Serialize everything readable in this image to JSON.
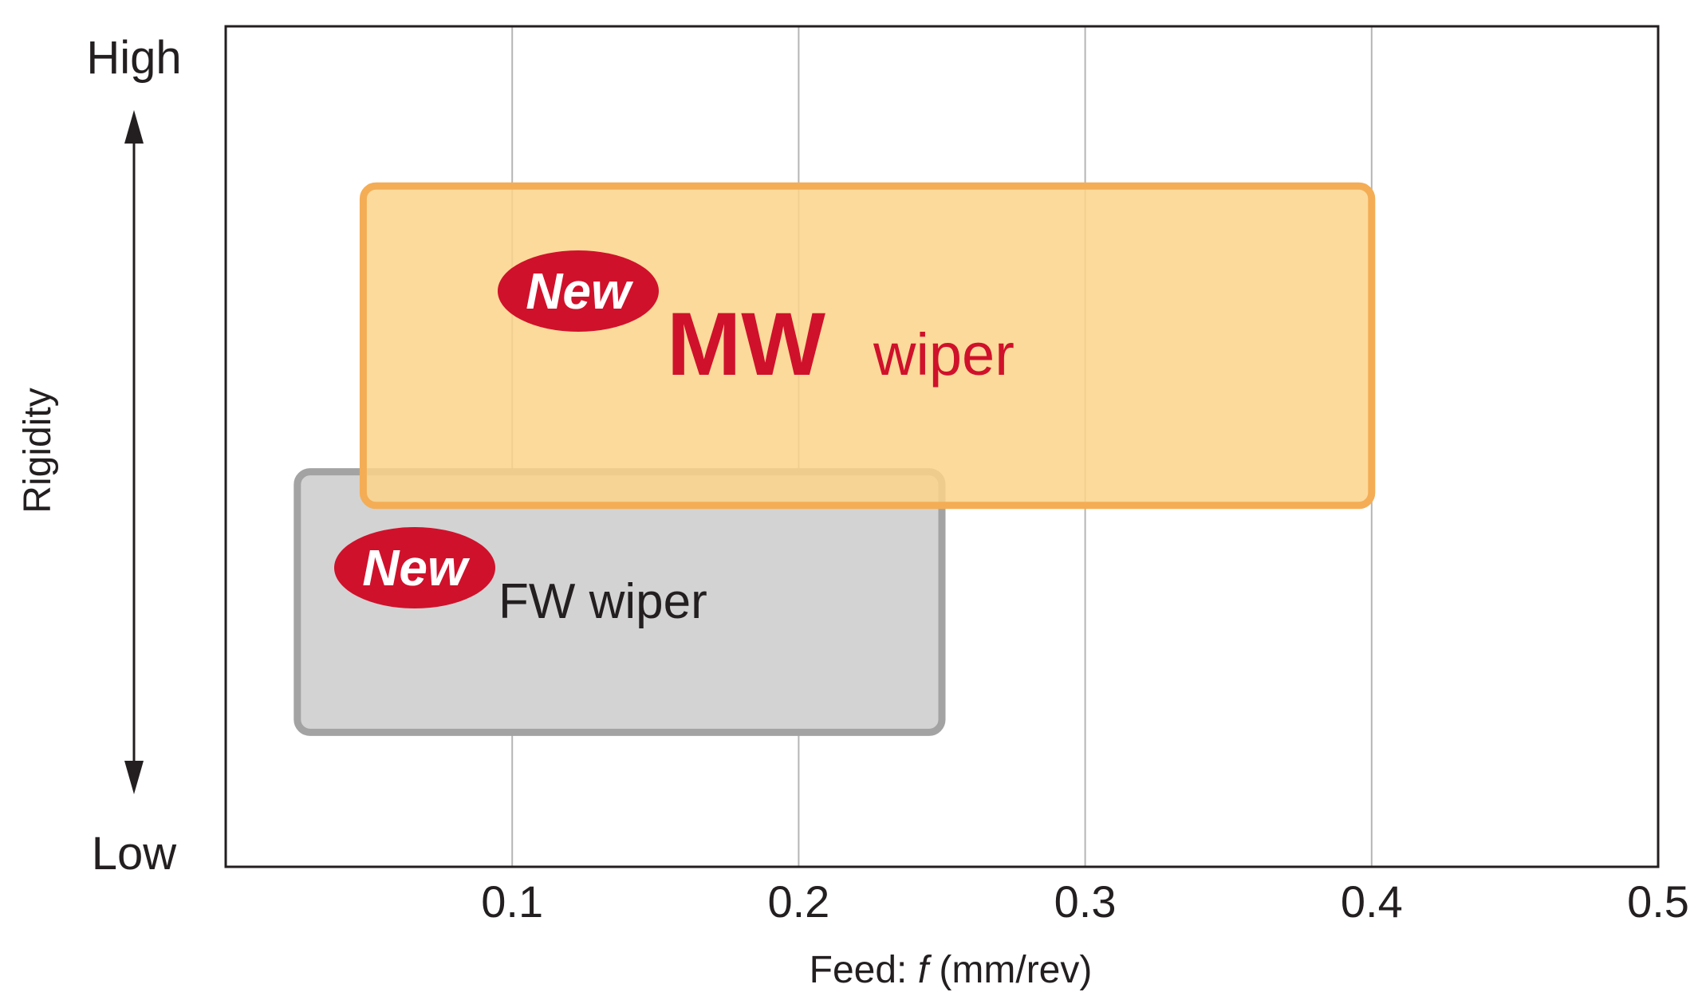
{
  "chart_data": {
    "type": "range-box",
    "x_axis": {
      "label_prefix": "Feed: ",
      "label_var": "f",
      "label_suffix": " (mm/rev)",
      "ticks": [
        "0.1",
        "0.2",
        "0.3",
        "0.4",
        "0.5"
      ],
      "tick_values": [
        0.1,
        0.2,
        0.3,
        0.4,
        0.5
      ],
      "range": [
        0.0,
        0.5
      ]
    },
    "y_axis": {
      "label": "Rigidity",
      "high_label": "High",
      "low_label": "Low",
      "range": [
        0,
        1
      ]
    },
    "grid": "vertical",
    "series": [
      {
        "name": "FW wiper",
        "badge": "New",
        "feed_range": [
          0.025,
          0.25
        ],
        "rigidity_range": [
          0.16,
          0.47
        ],
        "fill": "#d3d3d3",
        "stroke": "#a3a3a3",
        "label_color": "#231f20"
      },
      {
        "name_main": "MW",
        "name_sub": "wiper",
        "badge": "New",
        "feed_range": [
          0.048,
          0.4
        ],
        "rigidity_range": [
          0.43,
          0.81
        ],
        "fill": "#fbd48a",
        "stroke": "#f4ad55",
        "label_color": "#d0112b"
      }
    ],
    "colors": {
      "badge": "#d0112b",
      "axis": "#231f20",
      "grid": "#b5b5b5"
    }
  }
}
